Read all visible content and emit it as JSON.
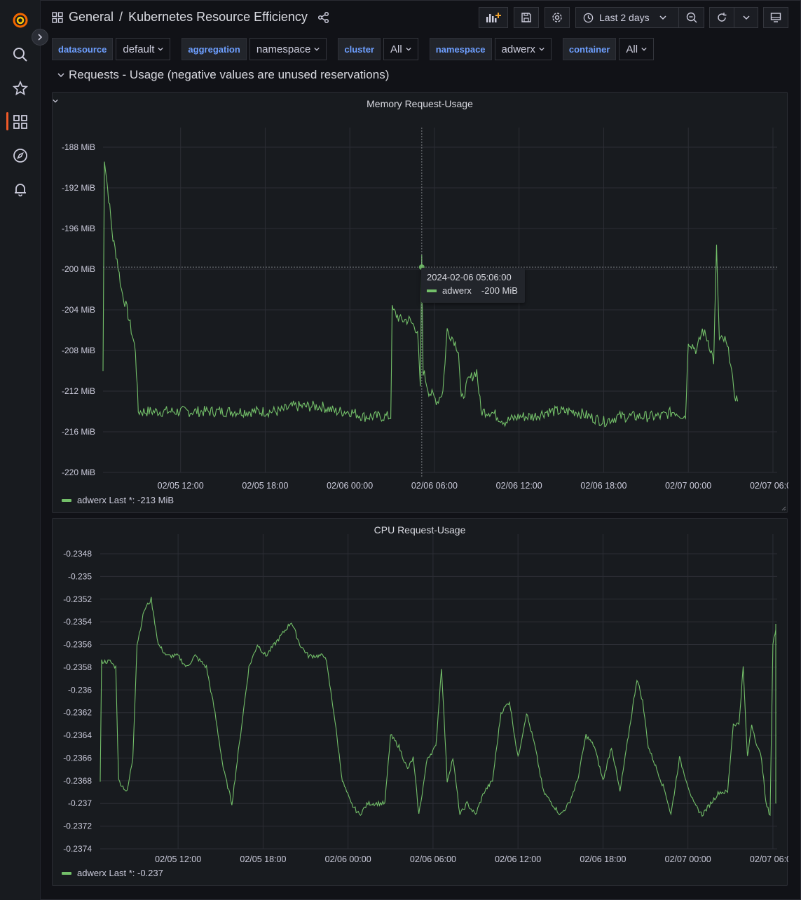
{
  "dashboard": {
    "folder": "General",
    "title": "Kubernetes Resource Efficiency"
  },
  "toolbar": {
    "time_range": "Last 2 days"
  },
  "variables": [
    {
      "label": "datasource",
      "value": "default"
    },
    {
      "label": "aggregation",
      "value": "namespace"
    },
    {
      "label": "cluster",
      "value": "All"
    },
    {
      "label": "namespace",
      "value": "adwerx"
    },
    {
      "label": "container",
      "value": "All"
    }
  ],
  "row": {
    "title": "Requests - Usage (negative values are unused reservations)"
  },
  "panels": {
    "memory": {
      "title": "Memory Request-Usage",
      "legend": "adwerx  Last *: -213 MiB",
      "tooltip": {
        "time": "2024-02-06 05:06:00",
        "series": "adwerx",
        "value": "-200 MiB"
      }
    },
    "cpu": {
      "title": "CPU Request-Usage",
      "legend": "adwerx  Last *: -0.237"
    }
  },
  "colors": {
    "series": "#73bf69",
    "accent": "#f05a28",
    "variable_label": "#6e9fff"
  },
  "chart_data": [
    {
      "type": "line",
      "title": "Memory Request-Usage",
      "unit": "MiB",
      "x_ticks": [
        "02/05 12:00",
        "02/05 18:00",
        "02/06 00:00",
        "02/06 06:00",
        "02/06 12:00",
        "02/06 18:00",
        "02/07 00:00",
        "02/07 06:00"
      ],
      "y_ticks": [
        "-188 MiB",
        "-192 MiB",
        "-196 MiB",
        "-200 MiB",
        "-204 MiB",
        "-208 MiB",
        "-212 MiB",
        "-216 MiB",
        "-220 MiB"
      ],
      "ylim": [
        -220,
        -188
      ],
      "xlim_hours": [
        6.5,
        54.3
      ],
      "series": [
        {
          "name": "adwerx",
          "points": [
            [
              6.5,
              -210
            ],
            [
              6.6,
              -189
            ],
            [
              6.9,
              -193
            ],
            [
              7.2,
              -197
            ],
            [
              7.5,
              -199
            ],
            [
              7.8,
              -202
            ],
            [
              8.2,
              -204
            ],
            [
              8.5,
              -206
            ],
            [
              8.8,
              -208
            ],
            [
              9.0,
              -214
            ],
            [
              10,
              -214
            ],
            [
              11,
              -214
            ],
            [
              12,
              -214
            ],
            [
              13,
              -214
            ],
            [
              14,
              -214
            ],
            [
              15,
              -214
            ],
            [
              16,
              -214
            ],
            [
              17,
              -214
            ],
            [
              18,
              -214
            ],
            [
              19,
              -214
            ],
            [
              20,
              -213.5
            ],
            [
              21,
              -213.5
            ],
            [
              22,
              -213.5
            ],
            [
              23,
              -214
            ],
            [
              24,
              -214
            ],
            [
              25,
              -214.5
            ],
            [
              26,
              -214.5
            ],
            [
              26.9,
              -214.5
            ],
            [
              27.0,
              -204
            ],
            [
              27.6,
              -205
            ],
            [
              28.2,
              -205
            ],
            [
              28.8,
              -206
            ],
            [
              29.0,
              -212
            ],
            [
              29.1,
              -199
            ],
            [
              29.2,
              -210
            ],
            [
              29.6,
              -212
            ],
            [
              30.2,
              -213
            ],
            [
              30.6,
              -212
            ],
            [
              30.9,
              -206
            ],
            [
              31.4,
              -207
            ],
            [
              31.7,
              -208
            ],
            [
              31.9,
              -213
            ],
            [
              32.4,
              -211
            ],
            [
              33.0,
              -210
            ],
            [
              33.3,
              -214
            ],
            [
              34,
              -214
            ],
            [
              35,
              -215
            ],
            [
              36,
              -214.5
            ],
            [
              37,
              -214.5
            ],
            [
              38,
              -214
            ],
            [
              39,
              -214
            ],
            [
              40,
              -214
            ],
            [
              41,
              -214.5
            ],
            [
              42,
              -215
            ],
            [
              43,
              -214.5
            ],
            [
              44,
              -214.5
            ],
            [
              45,
              -214.5
            ],
            [
              46,
              -214.5
            ],
            [
              47,
              -214
            ],
            [
              47.8,
              -214.5
            ],
            [
              48.0,
              -207
            ],
            [
              48.6,
              -208
            ],
            [
              49.0,
              -206
            ],
            [
              49.4,
              -207
            ],
            [
              49.8,
              -209
            ],
            [
              50.0,
              -198
            ],
            [
              50.2,
              -207
            ],
            [
              50.6,
              -207
            ],
            [
              51.0,
              -209
            ],
            [
              51.2,
              -212
            ],
            [
              51.5,
              -213
            ]
          ]
        }
      ]
    },
    {
      "type": "line",
      "title": "CPU Request-Usage",
      "unit": "",
      "x_ticks": [
        "02/05 12:00",
        "02/05 18:00",
        "02/06 00:00",
        "02/06 06:00",
        "02/06 12:00",
        "02/06 18:00",
        "02/07 00:00",
        "02/07 06:00"
      ],
      "y_ticks": [
        "-0.2348",
        "-0.235",
        "-0.2352",
        "-0.2354",
        "-0.2356",
        "-0.2358",
        "-0.236",
        "-0.2362",
        "-0.2364",
        "-0.2366",
        "-0.2368",
        "-0.237",
        "-0.2372",
        "-0.2374"
      ],
      "ylim": [
        -0.2374,
        -0.2348
      ],
      "xlim_hours": [
        6.5,
        54.3
      ],
      "series": [
        {
          "name": "adwerx",
          "points": [
            [
              6.5,
              -0.2368
            ],
            [
              6.6,
              -0.23575
            ],
            [
              7.2,
              -0.23575
            ],
            [
              7.6,
              -0.2358
            ],
            [
              7.8,
              -0.2368
            ],
            [
              8.4,
              -0.2369
            ],
            [
              8.8,
              -0.2366
            ],
            [
              9.1,
              -0.2356
            ],
            [
              9.6,
              -0.2353
            ],
            [
              10.1,
              -0.2352
            ],
            [
              10.6,
              -0.2356
            ],
            [
              11.2,
              -0.2357
            ],
            [
              12.0,
              -0.2357
            ],
            [
              12.6,
              -0.2358
            ],
            [
              13.2,
              -0.2357
            ],
            [
              14.0,
              -0.2358
            ],
            [
              14.6,
              -0.2362
            ],
            [
              15.2,
              -0.2367
            ],
            [
              15.8,
              -0.237
            ],
            [
              16.4,
              -0.2364
            ],
            [
              17.0,
              -0.2358
            ],
            [
              17.6,
              -0.2356
            ],
            [
              18.2,
              -0.2357
            ],
            [
              18.8,
              -0.2356
            ],
            [
              19.4,
              -0.2355
            ],
            [
              20.0,
              -0.2354
            ],
            [
              20.6,
              -0.2356
            ],
            [
              21.2,
              -0.2357
            ],
            [
              21.8,
              -0.2357
            ],
            [
              22.4,
              -0.2357
            ],
            [
              23.0,
              -0.2362
            ],
            [
              23.6,
              -0.2368
            ],
            [
              24.2,
              -0.237
            ],
            [
              24.8,
              -0.2371
            ],
            [
              25.4,
              -0.237
            ],
            [
              26.0,
              -0.237
            ],
            [
              26.6,
              -0.237
            ],
            [
              27.0,
              -0.2364
            ],
            [
              27.6,
              -0.2365
            ],
            [
              28.2,
              -0.2367
            ],
            [
              28.6,
              -0.2366
            ],
            [
              29.0,
              -0.2371
            ],
            [
              29.6,
              -0.2366
            ],
            [
              30.2,
              -0.2365
            ],
            [
              30.6,
              -0.2358
            ],
            [
              31.0,
              -0.2368
            ],
            [
              31.4,
              -0.2366
            ],
            [
              31.9,
              -0.2371
            ],
            [
              32.4,
              -0.237
            ],
            [
              33.0,
              -0.2371
            ],
            [
              33.6,
              -0.2369
            ],
            [
              34.2,
              -0.2368
            ],
            [
              34.8,
              -0.2362
            ],
            [
              35.4,
              -0.2361
            ],
            [
              36.0,
              -0.2366
            ],
            [
              36.6,
              -0.2362
            ],
            [
              37.2,
              -0.2365
            ],
            [
              37.8,
              -0.2369
            ],
            [
              38.4,
              -0.237
            ],
            [
              39.0,
              -0.2371
            ],
            [
              39.6,
              -0.237
            ],
            [
              40.2,
              -0.2368
            ],
            [
              40.8,
              -0.2364
            ],
            [
              41.4,
              -0.2365
            ],
            [
              42.0,
              -0.2368
            ],
            [
              42.6,
              -0.2365
            ],
            [
              43.2,
              -0.2369
            ],
            [
              43.8,
              -0.2364
            ],
            [
              44.4,
              -0.2359
            ],
            [
              44.8,
              -0.2361
            ],
            [
              45.2,
              -0.2365
            ],
            [
              45.8,
              -0.2367
            ],
            [
              46.4,
              -0.2369
            ],
            [
              46.8,
              -0.2371
            ],
            [
              47.4,
              -0.2366
            ],
            [
              47.9,
              -0.2368
            ],
            [
              48.4,
              -0.237
            ],
            [
              49.0,
              -0.2371
            ],
            [
              49.6,
              -0.237
            ],
            [
              50.2,
              -0.2369
            ],
            [
              50.8,
              -0.2369
            ],
            [
              51.2,
              -0.2363
            ],
            [
              51.6,
              -0.2363
            ],
            [
              51.9,
              -0.2358
            ],
            [
              52.2,
              -0.2366
            ],
            [
              52.5,
              -0.2363
            ],
            [
              52.9,
              -0.2365
            ],
            [
              53.2,
              -0.2366
            ],
            [
              53.5,
              -0.237
            ],
            [
              53.8,
              -0.2371
            ],
            [
              54.0,
              -0.2356
            ],
            [
              54.3,
              -0.2354
            ],
            [
              54.6,
              -0.2355
            ],
            [
              55.0,
              -0.2368
            ],
            [
              55.3,
              -0.237
            ]
          ]
        }
      ]
    }
  ]
}
